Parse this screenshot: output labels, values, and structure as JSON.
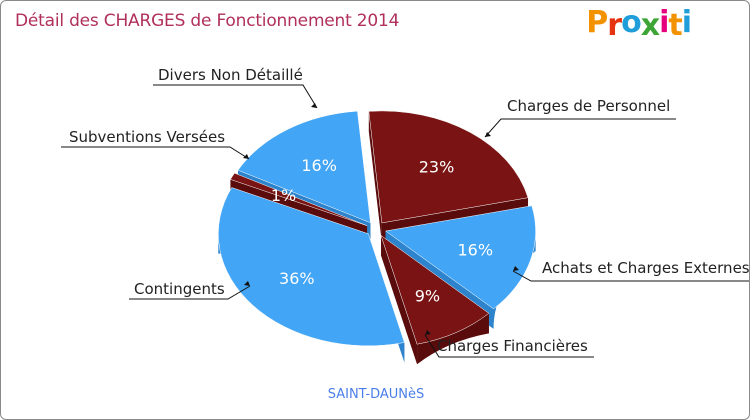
{
  "header": {
    "title": "Détail des CHARGES de Fonctionnement 2014",
    "logo_text": "Proxiti"
  },
  "caption": "SAINT-DAUNèS",
  "colors": {
    "blue": "#42a5f5",
    "blue_side": "#2d84cc",
    "red": "#7a1414",
    "red_side": "#5a0c0c",
    "title": "#b0305a",
    "caption": "#4a7ee8",
    "logo": [
      "#f39200",
      "#e63312",
      "#1f9ed9",
      "#3da535",
      "#e6007e",
      "#f39200",
      "#1f9ed9"
    ]
  },
  "chart_data": {
    "type": "pie",
    "title": "Détail des CHARGES de Fonctionnement 2014",
    "slices": [
      {
        "label": "Charges de Personnel",
        "value": 23,
        "display": "23%",
        "color": "red"
      },
      {
        "label": "Achats et Charges Externes",
        "value": 16,
        "display": "16%",
        "color": "blue"
      },
      {
        "label": "Charges Financières",
        "value": 9,
        "display": "9%",
        "color": "red"
      },
      {
        "label": "Contingents",
        "value": 36,
        "display": "36%",
        "color": "blue"
      },
      {
        "label": "Subventions Versées",
        "value": 1,
        "display": "1%",
        "color": "red"
      },
      {
        "label": "Divers Non Détaillé",
        "value": 16,
        "display": "16%",
        "color": "blue"
      }
    ],
    "start_angle_deg": -5,
    "exploded": true,
    "three_d": true
  }
}
